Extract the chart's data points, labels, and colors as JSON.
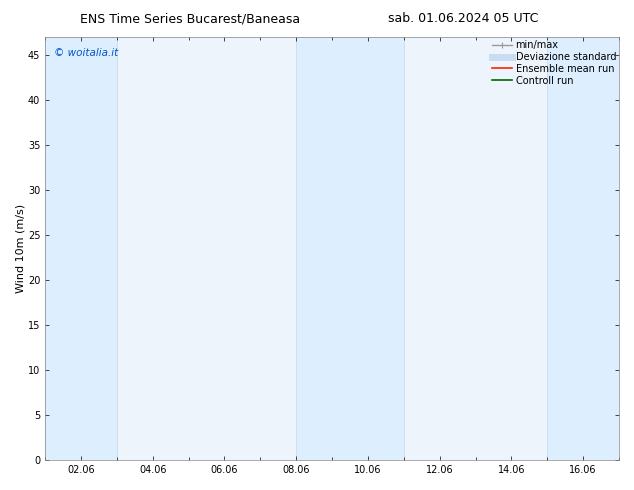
{
  "title_left": "ENS Time Series Bucarest/Baneasa",
  "title_right": "sab. 01.06.2024 05 UTC",
  "ylabel": "Wind 10m (m/s)",
  "watermark": "© woitalia.it",
  "watermark_color": "#0055cc",
  "xlim_start": 0,
  "xlim_end": 16,
  "ylim_min": 0,
  "ylim_max": 47,
  "yticks": [
    0,
    5,
    10,
    15,
    20,
    25,
    30,
    35,
    40,
    45
  ],
  "xtick_labels": [
    "02.06",
    "04.06",
    "06.06",
    "08.06",
    "10.06",
    "12.06",
    "14.06",
    "16.06"
  ],
  "xtick_positions": [
    1,
    3,
    5,
    7,
    9,
    11,
    13,
    15
  ],
  "shaded_bands": [
    {
      "x_start": 0,
      "x_end": 2
    },
    {
      "x_start": 7,
      "x_end": 10
    },
    {
      "x_start": 14,
      "x_end": 16
    }
  ],
  "band_color": "#ddeeff",
  "band_edge_color": "#c0d8f0",
  "plot_bg_color": "#eef4fc",
  "background_color": "#ffffff",
  "legend_entries": [
    {
      "label": "min/max",
      "color": "#999999",
      "lw": 1.0
    },
    {
      "label": "Deviazione standard",
      "color": "#c8ddf0",
      "lw": 5
    },
    {
      "label": "Ensemble mean run",
      "color": "#ff2200",
      "lw": 1.2
    },
    {
      "label": "Controll run",
      "color": "#006600",
      "lw": 1.2
    }
  ],
  "title_fontsize": 9,
  "axis_fontsize": 8,
  "tick_fontsize": 7,
  "legend_fontsize": 7
}
